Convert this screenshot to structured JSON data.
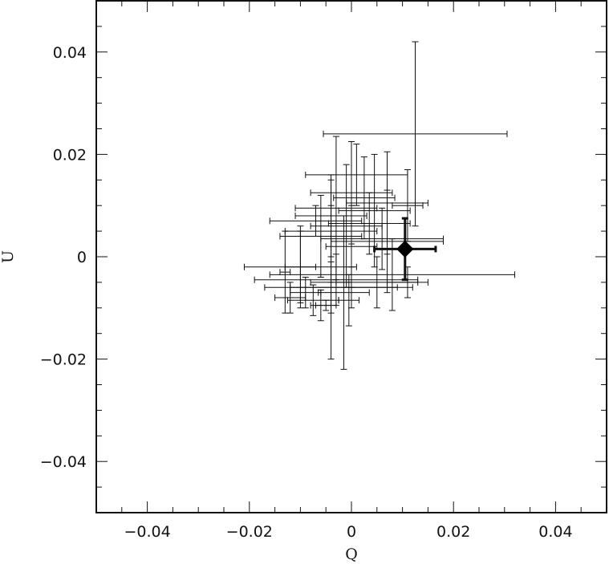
{
  "chart_data": {
    "type": "scatter",
    "title": "",
    "xlabel": "Q",
    "ylabel": "U",
    "xlim": [
      -0.05,
      0.05
    ],
    "ylim": [
      -0.05,
      0.05
    ],
    "x_major_ticks": [
      -0.04,
      -0.02,
      0,
      0.02,
      0.04
    ],
    "y_major_ticks": [
      -0.04,
      -0.02,
      0,
      0.02,
      0.04
    ],
    "x_tick_labels": [
      "−0.04",
      "−0.02",
      "0",
      "0.02",
      "0.04"
    ],
    "y_tick_labels": [
      "−0.04",
      "−0.02",
      "0",
      "0.02",
      "0.04"
    ],
    "x_minor_step": 0.005,
    "y_minor_step": 0.005,
    "grid": false,
    "series": [
      {
        "marker": "none",
        "points": [
          {
            "x": 0.0125,
            "y": 0.024,
            "xerr": 0.018,
            "yerr": 0.018
          },
          {
            "x": 0.001,
            "y": 0.016,
            "xerr": 0.01,
            "yerr": 0.006
          },
          {
            "x": 0.0,
            "y": 0.0125,
            "xerr": 0.008,
            "yerr": 0.01
          },
          {
            "x": 0.007,
            "y": 0.0105,
            "xerr": 0.008,
            "yerr": 0.01
          },
          {
            "x": 0.0025,
            "y": 0.0115,
            "xerr": 0.006,
            "yerr": 0.008
          },
          {
            "x": -0.003,
            "y": 0.0095,
            "xerr": 0.008,
            "yerr": 0.014
          },
          {
            "x": -0.004,
            "y": 0.008,
            "xerr": 0.007,
            "yerr": 0.008
          },
          {
            "x": 0.0045,
            "y": 0.009,
            "xerr": 0.007,
            "yerr": 0.011
          },
          {
            "x": 0.011,
            "y": 0.01,
            "xerr": 0.003,
            "yerr": 0.007
          },
          {
            "x": -0.001,
            "y": 0.006,
            "xerr": 0.007,
            "yerr": 0.012
          },
          {
            "x": 0.0035,
            "y": 0.0065,
            "xerr": 0.008,
            "yerr": 0.006
          },
          {
            "x": -0.007,
            "y": 0.007,
            "xerr": 0.009,
            "yerr": 0.003
          },
          {
            "x": -0.004,
            "y": 0.005,
            "xerr": 0.009,
            "yerr": 0.01
          },
          {
            "x": -0.006,
            "y": 0.004,
            "xerr": 0.008,
            "yerr": 0.008
          },
          {
            "x": 0.006,
            "y": 0.0035,
            "xerr": 0.012,
            "yerr": 0.006
          },
          {
            "x": -0.01,
            "y": -0.002,
            "xerr": 0.003,
            "yerr": 0.007
          },
          {
            "x": 0.007,
            "y": 0.003,
            "xerr": 0.011,
            "yerr": 0.01
          },
          {
            "x": 0.0,
            "y": 0.002,
            "xerr": 0.005,
            "yerr": 0.008
          },
          {
            "x": 0.008,
            "y": -0.0035,
            "xerr": 0.024,
            "yerr": 0.007
          },
          {
            "x": -0.01,
            "y": -0.002,
            "xerr": 0.011,
            "yerr": 0.008
          },
          {
            "x": -0.003,
            "y": -0.0045,
            "xerr": 0.016,
            "yerr": 0.005
          },
          {
            "x": -0.004,
            "y": -0.006,
            "xerr": 0.013,
            "yerr": 0.005
          },
          {
            "x": 0.0,
            "y": -0.006,
            "xerr": 0.012,
            "yerr": 0.004
          },
          {
            "x": 0.005,
            "y": -0.005,
            "xerr": 0.008,
            "yerr": 0.005
          },
          {
            "x": -0.004,
            "y": -0.005,
            "xerr": 0.004,
            "yerr": 0.015
          },
          {
            "x": -0.0015,
            "y": -0.007,
            "xerr": 0.005,
            "yerr": 0.015
          },
          {
            "x": -0.0005,
            "y": -0.0085,
            "xerr": 0.002,
            "yerr": 0.005
          },
          {
            "x": -0.009,
            "y": -0.007,
            "xerr": 0.003,
            "yerr": 0.003
          },
          {
            "x": -0.0075,
            "y": -0.0085,
            "xerr": 0.005,
            "yerr": 0.003
          },
          {
            "x": -0.006,
            "y": -0.0095,
            "xerr": 0.002,
            "yerr": 0.003
          },
          {
            "x": -0.005,
            "y": -0.0095,
            "xerr": 0.002,
            "yerr": 0.001
          },
          {
            "x": -0.012,
            "y": -0.008,
            "xerr": 0.003,
            "yerr": 0.003
          },
          {
            "x": -0.013,
            "y": -0.003,
            "xerr": 0.001,
            "yerr": 0.008
          },
          {
            "x": 0.011,
            "y": -0.005,
            "xerr": 0.004,
            "yerr": 0.003
          }
        ]
      },
      {
        "marker": "filled-diamond",
        "points": [
          {
            "x": 0.0105,
            "y": 0.0015,
            "xerr": 0.006,
            "yerr": 0.006
          }
        ]
      }
    ]
  }
}
